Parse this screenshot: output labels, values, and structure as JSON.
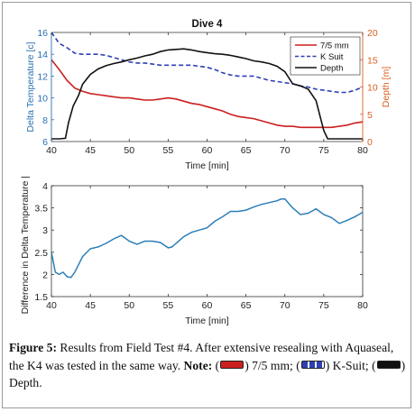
{
  "chart_data": [
    {
      "type": "line",
      "title": "Dive 4",
      "xlabel": "Time [min]",
      "ylabel": "Delta Temperature [c]",
      "y2label": "Depth [m]",
      "xlim": [
        40,
        80
      ],
      "ylim": [
        6,
        16
      ],
      "y2lim": [
        0,
        20
      ],
      "xticks": [
        40,
        45,
        50,
        55,
        60,
        65,
        70,
        75,
        80
      ],
      "yticks": [
        6,
        8,
        10,
        12,
        14,
        16
      ],
      "y2ticks": [
        0,
        5,
        10,
        15,
        20
      ],
      "grid": false,
      "legend_position": "top-right",
      "colors": {
        "left_axis": "#2a6fb0",
        "right_axis": "#d95f1e"
      },
      "series": [
        {
          "name": "7/5 mm",
          "axis": "left",
          "style": "solid",
          "color": "#cc1f1f",
          "x": [
            40,
            41,
            42,
            43,
            44,
            45,
            46,
            47,
            48,
            49,
            50,
            51,
            52,
            53,
            54,
            55,
            56,
            57,
            58,
            59,
            60,
            61,
            62,
            63,
            64,
            65,
            66,
            67,
            68,
            69,
            70,
            71,
            72,
            73,
            74,
            75,
            76,
            77,
            78,
            79,
            80
          ],
          "y": [
            13.5,
            12.6,
            11.6,
            10.9,
            10.6,
            10.4,
            10.3,
            10.2,
            10.1,
            10.0,
            10.0,
            9.9,
            9.8,
            9.8,
            9.9,
            10.0,
            9.9,
            9.7,
            9.5,
            9.4,
            9.2,
            9.0,
            8.8,
            8.5,
            8.3,
            8.2,
            8.1,
            7.9,
            7.7,
            7.5,
            7.4,
            7.4,
            7.3,
            7.3,
            7.3,
            7.3,
            7.3,
            7.4,
            7.5,
            7.7,
            7.8
          ]
        },
        {
          "name": "K Suit",
          "axis": "left",
          "style": "dashed",
          "color": "#2f3fb5",
          "x": [
            40,
            41,
            42,
            43,
            44,
            45,
            46,
            47,
            48,
            49,
            50,
            51,
            52,
            53,
            54,
            55,
            56,
            57,
            58,
            59,
            60,
            61,
            62,
            63,
            64,
            65,
            66,
            67,
            68,
            69,
            70,
            71,
            72,
            73,
            74,
            75,
            76,
            77,
            78,
            79,
            80
          ],
          "y": [
            16.0,
            15.0,
            14.6,
            14.1,
            14.0,
            14.0,
            14.0,
            13.9,
            13.7,
            13.5,
            13.3,
            13.2,
            13.2,
            13.1,
            13.0,
            13.0,
            13.0,
            13.0,
            13.0,
            12.9,
            12.8,
            12.6,
            12.3,
            12.1,
            12.0,
            12.0,
            12.0,
            11.8,
            11.6,
            11.5,
            11.4,
            11.3,
            11.1,
            11.0,
            10.8,
            10.7,
            10.6,
            10.5,
            10.5,
            10.7,
            11.0
          ]
        },
        {
          "name": "Depth",
          "axis": "right",
          "style": "solid",
          "color": "#111111",
          "x": [
            40,
            41,
            41.8,
            42.2,
            42.8,
            43.5,
            44,
            45,
            46,
            47,
            48,
            49,
            50,
            51,
            52,
            53,
            54,
            55,
            56,
            57,
            58,
            59,
            60,
            61,
            62,
            63,
            64,
            65,
            66,
            67,
            68,
            69,
            70,
            71,
            72,
            73,
            74,
            75,
            75.5,
            76,
            77,
            78,
            79,
            80
          ],
          "y": [
            0.5,
            0.5,
            0.6,
            3.5,
            6.5,
            8.5,
            10.5,
            12.3,
            13.3,
            13.9,
            14.3,
            14.6,
            15.0,
            15.3,
            15.7,
            16.0,
            16.5,
            16.8,
            16.9,
            17.0,
            16.8,
            16.5,
            16.3,
            16.1,
            16.0,
            15.8,
            15.5,
            15.2,
            14.8,
            14.6,
            14.3,
            13.8,
            12.8,
            10.6,
            10.2,
            9.6,
            7.5,
            2.0,
            0.5,
            0.5,
            0.5,
            0.5,
            0.5,
            0.5
          ]
        }
      ]
    },
    {
      "type": "line",
      "title": "",
      "xlabel": "Time [min]",
      "ylabel": "Difference in Delta Temperature [c]",
      "xlim": [
        40,
        80
      ],
      "ylim": [
        1.5,
        4
      ],
      "xticks": [
        40,
        45,
        50,
        55,
        60,
        65,
        70,
        75,
        80
      ],
      "yticks": [
        1.5,
        2,
        2.5,
        3,
        3.5,
        4
      ],
      "grid": false,
      "series": [
        {
          "color": "#2c7fb8",
          "x": [
            40,
            40.5,
            41,
            41.5,
            42,
            42.5,
            43,
            44,
            45,
            46,
            47,
            48,
            49,
            50,
            51,
            52,
            53,
            54,
            55,
            55.5,
            56,
            57,
            58,
            59,
            60,
            61,
            62,
            63,
            64,
            65,
            66,
            67,
            68,
            69,
            69.5,
            70,
            71,
            72,
            73,
            74,
            75,
            76,
            77,
            78,
            79,
            80
          ],
          "y": [
            2.5,
            2.05,
            2.0,
            2.05,
            1.95,
            1.93,
            2.05,
            2.4,
            2.58,
            2.62,
            2.7,
            2.8,
            2.88,
            2.75,
            2.68,
            2.75,
            2.75,
            2.72,
            2.6,
            2.62,
            2.7,
            2.85,
            2.95,
            3.0,
            3.05,
            3.2,
            3.3,
            3.42,
            3.42,
            3.45,
            3.52,
            3.58,
            3.62,
            3.66,
            3.7,
            3.7,
            3.5,
            3.35,
            3.38,
            3.48,
            3.35,
            3.28,
            3.15,
            3.22,
            3.3,
            3.4
          ]
        }
      ]
    }
  ],
  "caption": {
    "figure_label": "Figure 5:",
    "text_1": "Results from Field Test #4. After extensive resealing with Aquaseal, the K4 was tested in the same way.",
    "note_label": "Note:",
    "open_paren": "(",
    "red_label": ") 7/5 mm;",
    "blue_label": ") K-Suit;",
    "black_label": ") Depth."
  }
}
